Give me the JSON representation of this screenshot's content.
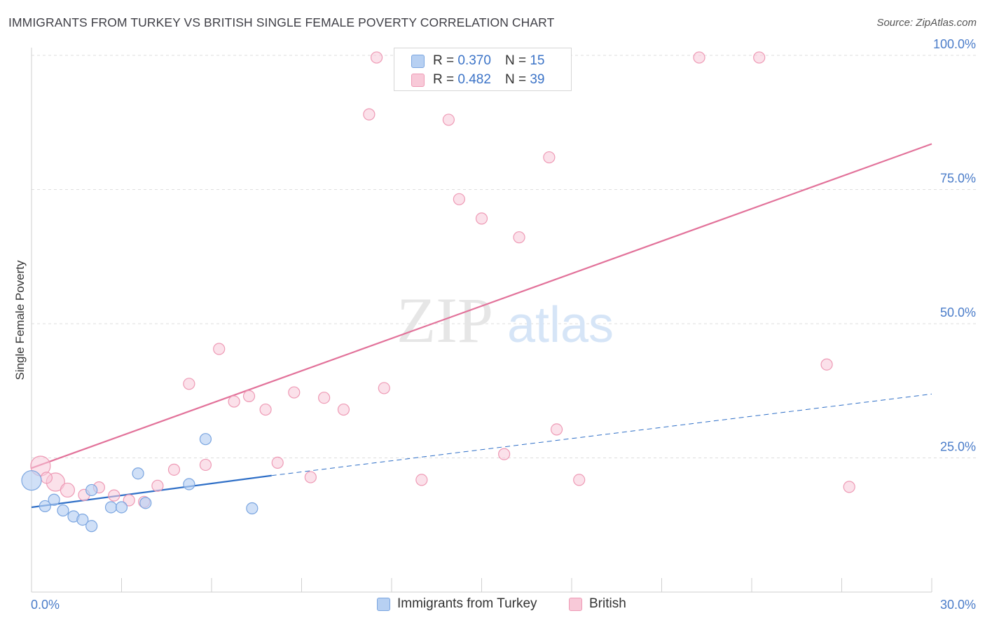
{
  "header": {
    "title": "IMMIGRANTS FROM TURKEY VS BRITISH SINGLE FEMALE POVERTY CORRELATION CHART",
    "source": "Source: ZipAtlas.com"
  },
  "watermark": {
    "zip": "ZIP",
    "atlas": "atlas"
  },
  "legend": {
    "turkey": {
      "r_label": "R =",
      "r_value": "0.370",
      "n_label": "N =",
      "n_value": "15"
    },
    "british": {
      "r_label": "R =",
      "r_value": "0.482",
      "n_label": "N =",
      "n_value": "39"
    }
  },
  "colors": {
    "turkey_fill": "#b7d0f2",
    "turkey_stroke": "#7aa5e0",
    "turkey_line": "#2f6fc7",
    "british_fill": "#f8c9d8",
    "british_stroke": "#ee9ab5",
    "british_line": "#e2729a",
    "tick_label": "#4a7cc9",
    "grid": "#dedede"
  },
  "chart_data": {
    "type": "scatter",
    "title": "IMMIGRANTS FROM TURKEY VS BRITISH SINGLE FEMALE POVERTY CORRELATION CHART",
    "xlabel": "",
    "ylabel": "Single Female Poverty",
    "xlim": [
      0,
      30
    ],
    "ylim": [
      0,
      100
    ],
    "x_tick_labels": [
      "0.0%",
      "30.0%"
    ],
    "y_ticks": [
      25,
      50,
      75,
      100
    ],
    "y_tick_labels": [
      "25.0%",
      "50.0%",
      "75.0%",
      "100.0%"
    ],
    "grid": "horizontal dashed",
    "legend_position": "bottom-center",
    "series": [
      {
        "name": "Immigrants from Turkey",
        "points": [
          {
            "x": 0.0,
            "y": 20.8,
            "s": 14
          },
          {
            "x": 0.45,
            "y": 16.0,
            "s": 8
          },
          {
            "x": 0.75,
            "y": 17.2,
            "s": 8
          },
          {
            "x": 1.05,
            "y": 15.2,
            "s": 8
          },
          {
            "x": 1.4,
            "y": 14.1,
            "s": 8
          },
          {
            "x": 1.7,
            "y": 13.5,
            "s": 8
          },
          {
            "x": 2.0,
            "y": 12.3,
            "s": 8
          },
          {
            "x": 2.0,
            "y": 19.0,
            "s": 8
          },
          {
            "x": 2.65,
            "y": 15.8,
            "s": 8
          },
          {
            "x": 3.0,
            "y": 15.8,
            "s": 8
          },
          {
            "x": 3.55,
            "y": 22.1,
            "s": 8
          },
          {
            "x": 3.8,
            "y": 16.6,
            "s": 8
          },
          {
            "x": 5.25,
            "y": 20.1,
            "s": 8
          },
          {
            "x": 5.8,
            "y": 28.5,
            "s": 8
          },
          {
            "x": 7.35,
            "y": 15.6,
            "s": 8
          }
        ],
        "trend": {
          "x0": 0,
          "y0": 15.8,
          "x1": 8.0,
          "y1": 21.7,
          "dashed_to_x": 30,
          "dashed_to_y": 36.9
        }
      },
      {
        "name": "British",
        "points": [
          {
            "x": 0.3,
            "y": 23.5,
            "s": 14
          },
          {
            "x": 0.8,
            "y": 20.5,
            "s": 13
          },
          {
            "x": 1.2,
            "y": 19.0,
            "s": 10
          },
          {
            "x": 1.75,
            "y": 18.1,
            "s": 8
          },
          {
            "x": 2.25,
            "y": 19.5,
            "s": 8
          },
          {
            "x": 2.75,
            "y": 18.0,
            "s": 8
          },
          {
            "x": 3.25,
            "y": 17.1,
            "s": 8
          },
          {
            "x": 3.75,
            "y": 16.8,
            "s": 8
          },
          {
            "x": 4.2,
            "y": 19.8,
            "s": 8
          },
          {
            "x": 4.75,
            "y": 22.8,
            "s": 8
          },
          {
            "x": 5.25,
            "y": 38.8,
            "s": 8
          },
          {
            "x": 5.8,
            "y": 23.7,
            "s": 8
          },
          {
            "x": 6.25,
            "y": 45.3,
            "s": 8
          },
          {
            "x": 6.75,
            "y": 35.5,
            "s": 8
          },
          {
            "x": 7.25,
            "y": 36.5,
            "s": 8
          },
          {
            "x": 7.8,
            "y": 34.0,
            "s": 8
          },
          {
            "x": 8.2,
            "y": 24.1,
            "s": 8
          },
          {
            "x": 8.75,
            "y": 37.2,
            "s": 8
          },
          {
            "x": 9.3,
            "y": 21.4,
            "s": 8
          },
          {
            "x": 9.75,
            "y": 36.2,
            "s": 8
          },
          {
            "x": 10.4,
            "y": 34.0,
            "s": 8
          },
          {
            "x": 11.25,
            "y": 89.0,
            "s": 8
          },
          {
            "x": 11.5,
            "y": 99.6,
            "s": 8
          },
          {
            "x": 11.75,
            "y": 38.0,
            "s": 8
          },
          {
            "x": 12.75,
            "y": 99.6,
            "s": 8
          },
          {
            "x": 13.0,
            "y": 20.9,
            "s": 8
          },
          {
            "x": 13.9,
            "y": 88.0,
            "s": 8
          },
          {
            "x": 14.25,
            "y": 73.2,
            "s": 8
          },
          {
            "x": 15.0,
            "y": 69.6,
            "s": 8
          },
          {
            "x": 15.75,
            "y": 25.7,
            "s": 8
          },
          {
            "x": 16.25,
            "y": 66.1,
            "s": 8
          },
          {
            "x": 17.25,
            "y": 81.0,
            "s": 8
          },
          {
            "x": 17.5,
            "y": 30.3,
            "s": 8
          },
          {
            "x": 18.25,
            "y": 20.9,
            "s": 8
          },
          {
            "x": 22.25,
            "y": 99.6,
            "s": 8
          },
          {
            "x": 24.25,
            "y": 99.6,
            "s": 8
          },
          {
            "x": 26.5,
            "y": 42.4,
            "s": 8
          },
          {
            "x": 27.25,
            "y": 19.6,
            "s": 8
          },
          {
            "x": 0.5,
            "y": 21.3,
            "s": 8
          }
        ],
        "trend": {
          "x0": 0,
          "y0": 23.1,
          "x1": 30,
          "y1": 83.5
        }
      }
    ]
  }
}
